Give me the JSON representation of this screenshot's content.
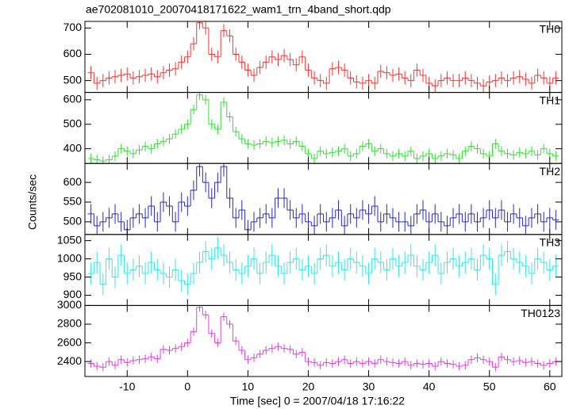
{
  "chart_data": {
    "type": "step",
    "title": "ae702081010_20070418171622_wam1_trn_4band_short.qdp",
    "xlabel": "Time [sec] 0 = 2007/04/18 17:16:22",
    "ylabel": "Counts/sec",
    "xlim": [
      -17,
      62
    ],
    "xticks": [
      -10,
      0,
      10,
      20,
      30,
      40,
      50,
      60
    ],
    "x": [
      -16,
      -15,
      -14,
      -13,
      -12,
      -11,
      -10,
      -9,
      -8,
      -7,
      -6,
      -5,
      -4,
      -3,
      -2,
      -1,
      0,
      1,
      2,
      3,
      4,
      5,
      6,
      7,
      8,
      9,
      10,
      11,
      12,
      13,
      14,
      15,
      16,
      17,
      18,
      19,
      20,
      21,
      22,
      23,
      24,
      25,
      26,
      27,
      28,
      29,
      30,
      31,
      32,
      33,
      34,
      35,
      36,
      37,
      38,
      39,
      40,
      41,
      42,
      43,
      44,
      45,
      46,
      47,
      48,
      49,
      50,
      51,
      52,
      53,
      54,
      55,
      56,
      57,
      58,
      59,
      60,
      61
    ],
    "series": [
      {
        "name": "TH0",
        "color": "#ff3030",
        "error": 25,
        "ylim": [
          455,
          725
        ],
        "yticks": [
          500,
          600,
          700
        ],
        "values": [
          530,
          490,
          500,
          510,
          515,
          520,
          525,
          510,
          515,
          520,
          525,
          515,
          530,
          540,
          545,
          570,
          590,
          640,
          720,
          700,
          600,
          590,
          690,
          670,
          600,
          570,
          540,
          520,
          550,
          570,
          590,
          580,
          595,
          580,
          560,
          590,
          540,
          510,
          500,
          490,
          545,
          550,
          540,
          510,
          495,
          490,
          500,
          490,
          535,
          530,
          520,
          525,
          510,
          500,
          540,
          520,
          490,
          480,
          500,
          510,
          500,
          500,
          510,
          500,
          490,
          480,
          495,
          500,
          510,
          500,
          510,
          515,
          505,
          490,
          520,
          510,
          490,
          510
        ]
      },
      {
        "name": "TH1",
        "color": "#30e030",
        "error": 20,
        "ylim": [
          340,
          630
        ],
        "yticks": [
          400,
          500,
          600
        ],
        "values": [
          360,
          355,
          350,
          355,
          370,
          400,
          390,
          380,
          395,
          410,
          400,
          420,
          430,
          440,
          460,
          480,
          500,
          560,
          620,
          600,
          500,
          480,
          590,
          530,
          470,
          440,
          420,
          415,
          420,
          430,
          425,
          430,
          435,
          420,
          430,
          410,
          380,
          360,
          390,
          380,
          385,
          390,
          400,
          370,
          380,
          410,
          420,
          390,
          400,
          380,
          370,
          380,
          370,
          390,
          360,
          370,
          380,
          360,
          370,
          380,
          375,
          360,
          390,
          410,
          400,
          380,
          370,
          420,
          390,
          380,
          375,
          385,
          380,
          390,
          375,
          400,
          380,
          370
        ]
      },
      {
        "name": "TH2",
        "color": "#2828c8",
        "error": 25,
        "ylim": [
          468,
          648
        ],
        "yticks": [
          500,
          550,
          600
        ],
        "values": [
          520,
          490,
          500,
          510,
          520,
          500,
          480,
          510,
          520,
          510,
          540,
          500,
          550,
          540,
          500,
          550,
          540,
          580,
          640,
          600,
          560,
          600,
          640,
          560,
          510,
          530,
          480,
          500,
          510,
          520,
          510,
          560,
          560,
          530,
          510,
          520,
          500,
          490,
          520,
          500,
          510,
          530,
          490,
          520,
          510,
          530,
          520,
          540,
          500,
          520,
          510,
          500,
          500,
          490,
          520,
          530,
          500,
          520,
          500,
          490,
          510,
          520,
          500,
          520,
          500,
          510,
          530,
          510,
          530,
          500,
          520,
          510,
          490,
          510,
          520,
          500,
          510,
          505
        ]
      },
      {
        "name": "TH3",
        "color": "#30e8e8",
        "error": 30,
        "ylim": [
          872,
          1067
        ],
        "yticks": [
          900,
          950,
          1000,
          1050
        ],
        "values": [
          960,
          990,
          930,
          1000,
          950,
          1010,
          960,
          970,
          980,
          960,
          990,
          970,
          960,
          950,
          970,
          940,
          930,
          960,
          990,
          1020,
          1000,
          1030,
          1010,
          990,
          970,
          960,
          980,
          1000,
          960,
          990,
          1010,
          980,
          960,
          990,
          1000,
          970,
          980,
          960,
          1000,
          1010,
          980,
          990,
          970,
          1000,
          990,
          980,
          960,
          1000,
          990,
          970,
          1000,
          980,
          990,
          1010,
          980,
          970,
          990,
          1010,
          960,
          990,
          1000,
          980,
          990,
          1000,
          970,
          1010,
          1000,
          930,
          1010,
          1020,
          1000,
          990,
          980,
          960,
          1000,
          990,
          970,
          980
        ]
      },
      {
        "name": "TH0123",
        "color": "#e040e0",
        "error": 45,
        "ylim": [
          2240,
          3000
        ],
        "yticks": [
          2400,
          2600,
          2800,
          3000
        ],
        "values": [
          2380,
          2350,
          2340,
          2400,
          2360,
          2420,
          2390,
          2410,
          2420,
          2430,
          2450,
          2430,
          2530,
          2520,
          2540,
          2560,
          2600,
          2720,
          2980,
          2900,
          2700,
          2600,
          2880,
          2800,
          2620,
          2520,
          2420,
          2440,
          2480,
          2520,
          2540,
          2560,
          2540,
          2530,
          2480,
          2500,
          2400,
          2390,
          2360,
          2390,
          2380,
          2400,
          2420,
          2380,
          2400,
          2380,
          2400,
          2380,
          2420,
          2400,
          2390,
          2380,
          2400,
          2360,
          2380,
          2370,
          2380,
          2350,
          2400,
          2380,
          2370,
          2350,
          2360,
          2420,
          2440,
          2420,
          2400,
          2340,
          2450,
          2420,
          2400,
          2410,
          2390,
          2400,
          2380,
          2360,
          2380,
          2400
        ]
      }
    ]
  }
}
